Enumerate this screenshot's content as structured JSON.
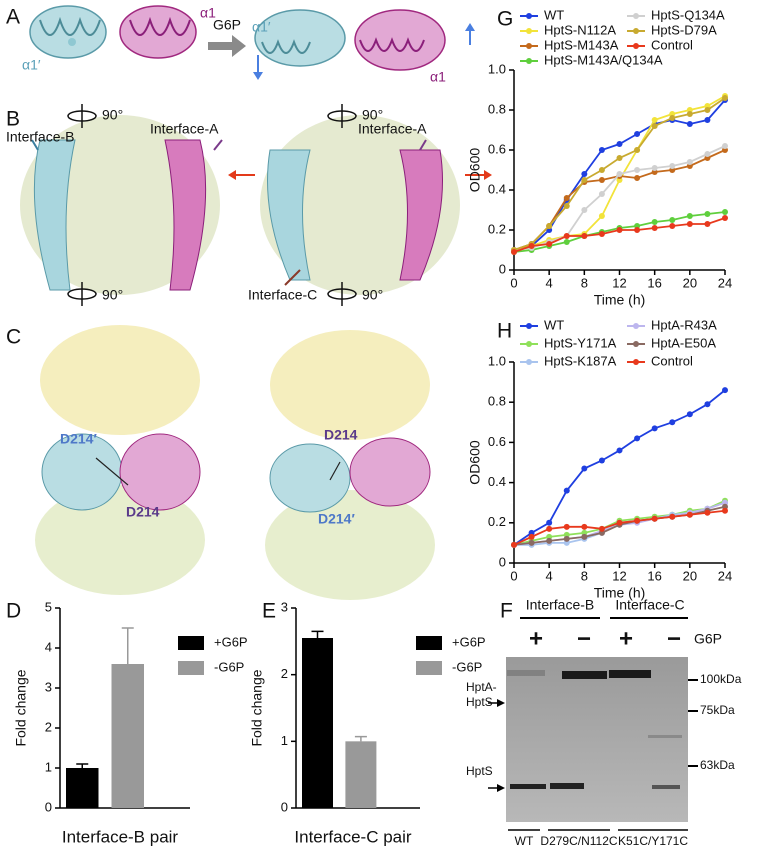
{
  "panels": {
    "A": {
      "letter": "A",
      "a1p_left": "α1′",
      "a1_left": "α1",
      "arrow": "G6P",
      "a1p_right": "α1′",
      "a1_right": "α1"
    },
    "B": {
      "letter": "B",
      "rot_top_left": "90°",
      "rot_top_right": "90°",
      "iface_b": "Interface-B",
      "iface_a_left": "Interface-A",
      "iface_a_right": "Interface-A",
      "iface_c": "Interface-C",
      "rot_bottom_left": "90°",
      "rot_bottom_right": "90°"
    },
    "C": {
      "letter": "C",
      "d214p_left": "D214′",
      "d214_left": "D214",
      "d214_right": "D214",
      "d214p_right": "D214′"
    },
    "F": {
      "letter": "F",
      "iface_b": "Interface-B",
      "iface_c": "Interface-C",
      "plus_b": "+",
      "minus_b": "−",
      "plus_c": "+",
      "minus_c": "−",
      "g6p": "G6P",
      "dimer": [
        "HptA-",
        "HptS"
      ],
      "monomer": "HptS",
      "markers": [
        "100kDa",
        "75kDa",
        "63kDa"
      ],
      "lanes": [
        "WT",
        "D279C/N112C",
        "K51C/Y171C"
      ]
    }
  },
  "chart_data": [
    {
      "type": "line",
      "label": "G",
      "xlabel": "Time (h)",
      "ylabel": "OD600",
      "x": [
        0,
        2,
        4,
        6,
        8,
        10,
        12,
        14,
        16,
        18,
        20,
        22,
        24
      ],
      "xlim": [
        0,
        24
      ],
      "xticks": [
        0,
        4,
        8,
        12,
        16,
        20,
        24
      ],
      "ylim": [
        0,
        1
      ],
      "yticks": [
        0,
        0.2,
        0.4,
        0.6,
        0.8,
        {
          "value": 1,
          "label": "1.0"
        }
      ],
      "series": [
        {
          "name": "WT",
          "color": "#1f3fe0",
          "values": [
            0.1,
            0.12,
            0.2,
            0.35,
            0.48,
            0.6,
            0.63,
            0.68,
            0.73,
            0.75,
            0.73,
            0.75,
            0.85
          ]
        },
        {
          "name": "HptS-N112A",
          "color": "#f2e33a",
          "values": [
            0.1,
            0.12,
            0.15,
            0.17,
            0.18,
            0.27,
            0.45,
            0.6,
            0.75,
            0.78,
            0.8,
            0.82,
            0.87
          ]
        },
        {
          "name": "HptS-M143A",
          "color": "#c46a1c",
          "values": [
            0.1,
            0.13,
            0.22,
            0.36,
            0.44,
            0.45,
            0.47,
            0.46,
            0.49,
            0.5,
            0.52,
            0.56,
            0.6
          ]
        },
        {
          "name": "HptS-M143A/Q134A",
          "color": "#5fcf3d",
          "values": [
            0.09,
            0.1,
            0.12,
            0.14,
            0.17,
            0.19,
            0.21,
            0.22,
            0.24,
            0.25,
            0.27,
            0.28,
            0.29
          ]
        },
        {
          "name": "HptS-Q134A",
          "color": "#d0d0d0",
          "values": [
            0.1,
            0.11,
            0.14,
            0.17,
            0.3,
            0.38,
            0.48,
            0.5,
            0.51,
            0.52,
            0.54,
            0.58,
            0.62
          ]
        },
        {
          "name": "HptS-D79A",
          "color": "#c8aa30",
          "values": [
            0.1,
            0.13,
            0.22,
            0.32,
            0.45,
            0.5,
            0.56,
            0.6,
            0.72,
            0.76,
            0.78,
            0.8,
            0.86
          ]
        },
        {
          "name": "Control",
          "color": "#e8391d",
          "values": [
            0.09,
            0.12,
            0.13,
            0.17,
            0.17,
            0.18,
            0.2,
            0.2,
            0.21,
            0.22,
            0.23,
            0.23,
            0.26
          ]
        }
      ]
    },
    {
      "type": "line",
      "label": "H",
      "xlabel": "Time (h)",
      "ylabel": "OD600",
      "x": [
        0,
        2,
        4,
        6,
        8,
        10,
        12,
        14,
        16,
        18,
        20,
        22,
        24
      ],
      "xlim": [
        0,
        24
      ],
      "xticks": [
        0,
        4,
        8,
        12,
        16,
        20,
        24
      ],
      "ylim": [
        0,
        1
      ],
      "yticks": [
        0,
        0.2,
        0.4,
        0.6,
        0.8,
        {
          "value": 1,
          "label": "1.0"
        }
      ],
      "series": [
        {
          "name": "WT",
          "color": "#1f3fe0",
          "values": [
            0.09,
            0.15,
            0.2,
            0.36,
            0.47,
            0.51,
            0.56,
            0.62,
            0.67,
            0.7,
            0.74,
            0.79,
            0.86
          ]
        },
        {
          "name": "HptS-Y171A",
          "color": "#8fe05a",
          "values": [
            0.09,
            0.11,
            0.13,
            0.14,
            0.15,
            0.17,
            0.21,
            0.22,
            0.23,
            0.24,
            0.26,
            0.27,
            0.31
          ]
        },
        {
          "name": "HptS-K187A",
          "color": "#a9c4ee",
          "values": [
            0.09,
            0.09,
            0.1,
            0.1,
            0.12,
            0.15,
            0.2,
            0.21,
            0.22,
            0.24,
            0.25,
            0.27,
            0.3
          ]
        },
        {
          "name": "HptA-R43A",
          "color": "#bdb6ee",
          "values": [
            0.09,
            0.1,
            0.11,
            0.12,
            0.13,
            0.16,
            0.19,
            0.2,
            0.22,
            0.23,
            0.25,
            0.27,
            0.3
          ]
        },
        {
          "name": "HptA-E50A",
          "color": "#8a6a62",
          "values": [
            0.09,
            0.1,
            0.11,
            0.12,
            0.13,
            0.15,
            0.19,
            0.21,
            0.22,
            0.23,
            0.24,
            0.26,
            0.28
          ]
        },
        {
          "name": "Control",
          "color": "#e8391d",
          "values": [
            0.09,
            0.13,
            0.17,
            0.18,
            0.18,
            0.17,
            0.2,
            0.21,
            0.22,
            0.23,
            0.24,
            0.25,
            0.26
          ]
        }
      ]
    },
    {
      "type": "bar",
      "label": "D",
      "xlabel": "Interface-B pair",
      "ylabel": "Fold change",
      "categories": [
        null
      ],
      "ylim": [
        0,
        5
      ],
      "yticks": [
        0,
        1,
        2,
        3,
        4,
        5
      ],
      "series": [
        {
          "name": "+G6P",
          "color": "#000000",
          "values": [
            1.0
          ],
          "errors": [
            0.1
          ]
        },
        {
          "name": "-G6P",
          "color": "#999999",
          "values": [
            3.6
          ],
          "errors": [
            0.9
          ]
        }
      ]
    },
    {
      "type": "bar",
      "label": "E",
      "xlabel": "Interface-C pair",
      "ylabel": "Fold change",
      "categories": [
        null
      ],
      "ylim": [
        0,
        3
      ],
      "yticks": [
        0,
        1,
        2,
        3
      ],
      "series": [
        {
          "name": "+G6P",
          "color": "#000000",
          "values": [
            2.55
          ],
          "errors": [
            0.1
          ]
        },
        {
          "name": "-G6P",
          "color": "#999999",
          "values": [
            1.0
          ],
          "errors": [
            0.07
          ]
        }
      ]
    }
  ]
}
